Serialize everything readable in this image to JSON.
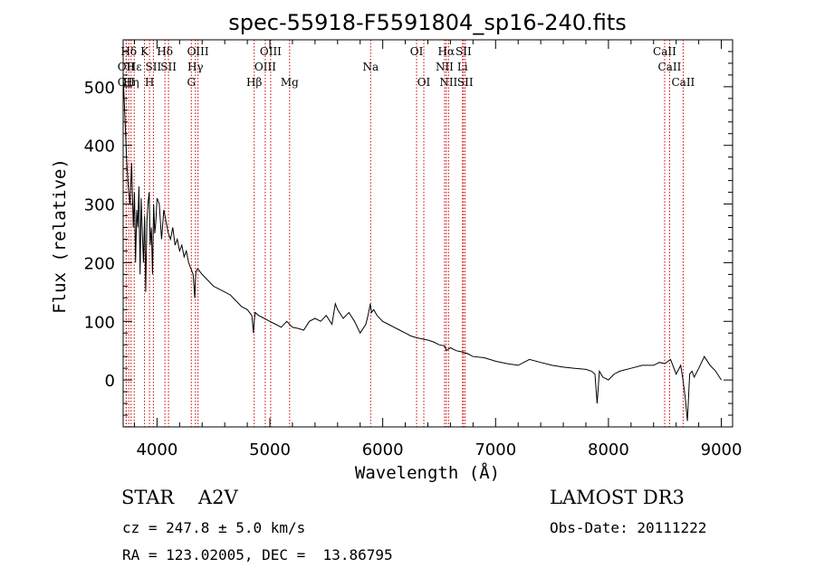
{
  "chart_data": {
    "type": "line",
    "title": "spec-55918-F5591804_sp16-240.fits",
    "xlabel": "Wavelength (Å)",
    "ylabel": "Flux (relative)",
    "xlim": [
      3700,
      9100
    ],
    "ylim": [
      -80,
      580
    ],
    "xticks": [
      4000,
      5000,
      6000,
      7000,
      8000,
      9000
    ],
    "yticks": [
      0,
      100,
      200,
      300,
      400,
      500
    ],
    "series": [
      {
        "name": "spectrum",
        "color": "#000000",
        "x": [
          3700,
          3715,
          3730,
          3745,
          3760,
          3775,
          3790,
          3800,
          3810,
          3820,
          3830,
          3840,
          3850,
          3860,
          3870,
          3880,
          3890,
          3900,
          3910,
          3920,
          3930,
          3940,
          3950,
          3960,
          3970,
          3980,
          3990,
          4000,
          4020,
          4040,
          4060,
          4080,
          4100,
          4120,
          4140,
          4160,
          4180,
          4200,
          4220,
          4240,
          4260,
          4280,
          4300,
          4320,
          4335,
          4340,
          4345,
          4360,
          4380,
          4400,
          4450,
          4500,
          4550,
          4600,
          4650,
          4700,
          4750,
          4800,
          4840,
          4855,
          4861,
          4870,
          4900,
          4950,
          5000,
          5050,
          5100,
          5150,
          5200,
          5250,
          5300,
          5350,
          5400,
          5450,
          5500,
          5550,
          5580,
          5600,
          5650,
          5700,
          5750,
          5800,
          5850,
          5870,
          5890,
          5900,
          5920,
          5950,
          6000,
          6050,
          6100,
          6150,
          6200,
          6250,
          6300,
          6350,
          6400,
          6450,
          6500,
          6550,
          6563,
          6600,
          6650,
          6700,
          6750,
          6800,
          6900,
          7000,
          7100,
          7200,
          7250,
          7300,
          7400,
          7500,
          7600,
          7700,
          7800,
          7850,
          7880,
          7900,
          7920,
          7950,
          8000,
          8050,
          8100,
          8200,
          8300,
          8400,
          8450,
          8500,
          8550,
          8600,
          8640,
          8660,
          8680,
          8700,
          8720,
          8740,
          8760,
          8800,
          8850,
          8900,
          8950,
          9000
        ],
        "y": [
          520,
          450,
          380,
          330,
          300,
          370,
          260,
          320,
          200,
          290,
          260,
          330,
          180,
          310,
          250,
          200,
          280,
          150,
          270,
          300,
          320,
          230,
          260,
          180,
          300,
          250,
          270,
          310,
          300,
          240,
          290,
          270,
          250,
          240,
          260,
          230,
          240,
          220,
          230,
          210,
          220,
          200,
          190,
          180,
          140,
          170,
          185,
          190,
          185,
          180,
          170,
          160,
          155,
          150,
          145,
          135,
          125,
          120,
          110,
          80,
          100,
          115,
          110,
          105,
          100,
          95,
          90,
          100,
          90,
          88,
          85,
          100,
          105,
          100,
          110,
          95,
          130,
          120,
          105,
          115,
          100,
          80,
          95,
          110,
          130,
          115,
          120,
          110,
          100,
          95,
          90,
          85,
          80,
          75,
          72,
          70,
          68,
          65,
          60,
          58,
          50,
          55,
          50,
          48,
          45,
          40,
          38,
          32,
          28,
          25,
          30,
          35,
          30,
          25,
          22,
          20,
          18,
          15,
          10,
          -40,
          15,
          5,
          0,
          10,
          15,
          20,
          25,
          25,
          30,
          28,
          35,
          10,
          25,
          0,
          -30,
          -70,
          10,
          15,
          5,
          20,
          40,
          25,
          15,
          0
        ]
      }
    ],
    "line_marks": [
      {
        "wl": 3727,
        "label": "OII",
        "row": 3
      },
      {
        "wl": 3727,
        "label": "OII",
        "row": 2
      },
      {
        "wl": 3750,
        "label": "Hδ",
        "row": 1
      },
      {
        "wl": 3770,
        "label": "Hη",
        "row": 3
      },
      {
        "wl": 3798,
        "label": "Hε",
        "row": 2
      },
      {
        "wl": 3889,
        "label": "K",
        "row": 1
      },
      {
        "wl": 3934,
        "label": "H",
        "row": 3
      },
      {
        "wl": 3968,
        "label": "SII",
        "row": 2
      },
      {
        "wl": 4070,
        "label": "Hδ",
        "row": 1
      },
      {
        "wl": 4102,
        "label": "SII",
        "row": 2
      },
      {
        "wl": 4304,
        "label": "G",
        "row": 3
      },
      {
        "wl": 4340,
        "label": "Hγ",
        "row": 2
      },
      {
        "wl": 4363,
        "label": "OIII",
        "row": 1
      },
      {
        "wl": 4861,
        "label": "Hβ",
        "row": 3
      },
      {
        "wl": 4959,
        "label": "OIII",
        "row": 2
      },
      {
        "wl": 5007,
        "label": "OIII",
        "row": 1
      },
      {
        "wl": 5175,
        "label": "Mg",
        "row": 3
      },
      {
        "wl": 5893,
        "label": "Na",
        "row": 2
      },
      {
        "wl": 6300,
        "label": "OI",
        "row": 1
      },
      {
        "wl": 6364,
        "label": "OI",
        "row": 3
      },
      {
        "wl": 6548,
        "label": "NII",
        "row": 2
      },
      {
        "wl": 6563,
        "label": "Hα",
        "row": 1
      },
      {
        "wl": 6583,
        "label": "NII",
        "row": 3
      },
      {
        "wl": 6707,
        "label": "Li",
        "row": 2
      },
      {
        "wl": 6716,
        "label": "SII",
        "row": 1
      },
      {
        "wl": 6731,
        "label": "SII",
        "row": 3
      },
      {
        "wl": 8498,
        "label": "CaII",
        "row": 1
      },
      {
        "wl": 8542,
        "label": "CaII",
        "row": 2
      },
      {
        "wl": 8662,
        "label": "CaII",
        "row": 3
      }
    ],
    "line_mark_color": "#cc0000"
  },
  "info": {
    "object_class": "STAR    A2V",
    "survey": "LAMOST DR3",
    "cz": "cz = 247.8 ± 5.0 km/s",
    "obs_date": "Obs-Date: 20111222",
    "radec": "RA = 123.02005, DEC =  13.86795"
  }
}
